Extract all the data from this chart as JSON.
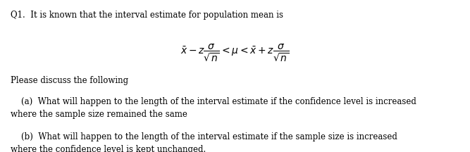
{
  "background_color": "#ffffff",
  "title_line": "Q1.  It is known that the interval estimate for population mean is",
  "formula": "$\\bar{x} - z\\dfrac{\\sigma}{\\sqrt{n}} < \\mu < \\bar{x} + z\\dfrac{\\sigma}{\\sqrt{n}}$",
  "please_line": "Please discuss the following",
  "part_a_indent": "    (a)  What will happen to the length of the interval estimate if the confidence level is increased\nwhere the sample size remained the same",
  "part_b_indent": "    (b)  What will happen to the length of the interval estimate if the sample size is increased\nwhere the confidence level is kept unchanged.",
  "font_size_main": 8.5,
  "font_size_formula": 10,
  "text_color": "#000000",
  "fig_width": 6.67,
  "fig_height": 2.16
}
